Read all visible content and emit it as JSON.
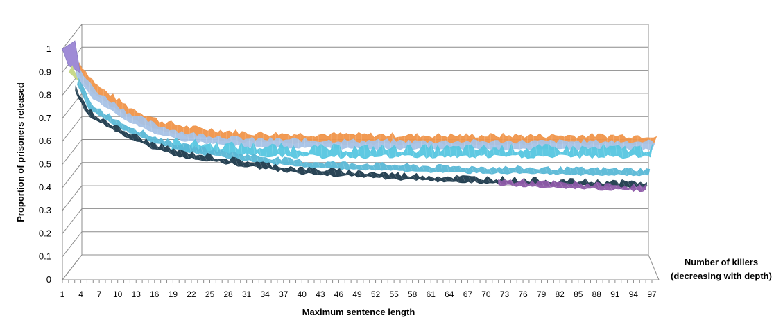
{
  "chart_data": {
    "type": "surface",
    "title": "",
    "xlabel": "Maximum sentence length",
    "ylabel": "Proportion of prisoners released",
    "depth_label": [
      "Number of killers",
      "(decreasing with depth)"
    ],
    "ylim": [
      0,
      1
    ],
    "y_ticks": [
      "0",
      "0.1",
      "0.2",
      "0.3",
      "0.4",
      "0.5",
      "0.6",
      "0.7",
      "0.8",
      "0.9",
      "1"
    ],
    "x_ticks": [
      "1",
      "4",
      "7",
      "10",
      "13",
      "16",
      "19",
      "22",
      "25",
      "28",
      "31",
      "34",
      "37",
      "40",
      "43",
      "46",
      "49",
      "52",
      "55",
      "58",
      "61",
      "64",
      "67",
      "70",
      "73",
      "76",
      "79",
      "82",
      "85",
      "88",
      "91",
      "94",
      "97"
    ],
    "gridlines": true,
    "series_bands": [
      {
        "color": "#f0954a",
        "x": [
          2,
          5,
          10,
          15,
          20,
          30,
          40,
          60,
          80,
          96
        ],
        "y": [
          0.88,
          0.78,
          0.69,
          0.63,
          0.6,
          0.575,
          0.57,
          0.565,
          0.565,
          0.565
        ],
        "noise": 0.012
      },
      {
        "color": "#a6c2e6",
        "x": [
          2,
          5,
          10,
          15,
          20,
          30,
          40,
          60,
          80,
          96
        ],
        "y": [
          0.87,
          0.77,
          0.68,
          0.62,
          0.585,
          0.56,
          0.555,
          0.55,
          0.55,
          0.55
        ],
        "noise": 0.01
      },
      {
        "color": "#56c6e0",
        "x": [
          18,
          25,
          30,
          40,
          60,
          80,
          96
        ],
        "y": [
          0.56,
          0.545,
          0.54,
          0.53,
          0.53,
          0.53,
          0.53
        ],
        "noise": 0.02
      },
      {
        "color": "#5ab8d6",
        "x": [
          3,
          5,
          10,
          15,
          20,
          30,
          40,
          60,
          80,
          96
        ],
        "y": [
          0.85,
          0.74,
          0.66,
          0.6,
          0.56,
          0.52,
          0.49,
          0.47,
          0.46,
          0.455
        ],
        "noise": 0.01
      },
      {
        "color": "#1f3b4d",
        "x": [
          3,
          5,
          10,
          15,
          20,
          30,
          40,
          60,
          80,
          96
        ],
        "y": [
          0.83,
          0.73,
          0.65,
          0.59,
          0.55,
          0.51,
          0.475,
          0.445,
          0.425,
          0.415
        ],
        "noise": 0.012
      },
      {
        "color": "#8d5aa8",
        "x": [
          72,
          80,
          90,
          96
        ],
        "y": [
          0.43,
          0.42,
          0.41,
          0.405
        ],
        "noise": 0.012
      }
    ],
    "top_series": {
      "color": "#9f8bd6",
      "x": [
        1,
        2,
        3
      ],
      "y": [
        1.0,
        0.94,
        0.88
      ]
    }
  }
}
